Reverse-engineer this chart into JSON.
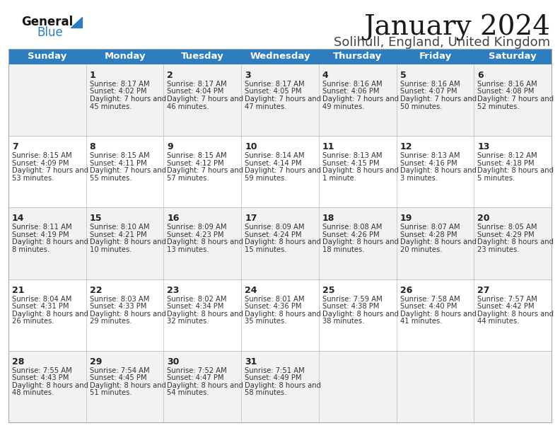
{
  "title": "January 2024",
  "subtitle": "Solihull, England, United Kingdom",
  "header_color": "#2E7DC0",
  "header_text_color": "#FFFFFF",
  "background_color": "#FFFFFF",
  "row_even_color": "#F2F2F2",
  "row_odd_color": "#FFFFFF",
  "border_color": "#AAAAAA",
  "line_color": "#BBBBBB",
  "days_of_week": [
    "Sunday",
    "Monday",
    "Tuesday",
    "Wednesday",
    "Thursday",
    "Friday",
    "Saturday"
  ],
  "title_fontsize": 28,
  "subtitle_fontsize": 13,
  "header_fontsize": 9.5,
  "day_num_fontsize": 9,
  "cell_fontsize": 7.2,
  "calendar_data": [
    [
      {
        "day": "",
        "sunrise": "",
        "sunset": "",
        "daylight": ""
      },
      {
        "day": "1",
        "sunrise": "8:17 AM",
        "sunset": "4:02 PM",
        "daylight": "7 hours and 45 minutes."
      },
      {
        "day": "2",
        "sunrise": "8:17 AM",
        "sunset": "4:04 PM",
        "daylight": "7 hours and 46 minutes."
      },
      {
        "day": "3",
        "sunrise": "8:17 AM",
        "sunset": "4:05 PM",
        "daylight": "7 hours and 47 minutes."
      },
      {
        "day": "4",
        "sunrise": "8:16 AM",
        "sunset": "4:06 PM",
        "daylight": "7 hours and 49 minutes."
      },
      {
        "day": "5",
        "sunrise": "8:16 AM",
        "sunset": "4:07 PM",
        "daylight": "7 hours and 50 minutes."
      },
      {
        "day": "6",
        "sunrise": "8:16 AM",
        "sunset": "4:08 PM",
        "daylight": "7 hours and 52 minutes."
      }
    ],
    [
      {
        "day": "7",
        "sunrise": "8:15 AM",
        "sunset": "4:09 PM",
        "daylight": "7 hours and 53 minutes."
      },
      {
        "day": "8",
        "sunrise": "8:15 AM",
        "sunset": "4:11 PM",
        "daylight": "7 hours and 55 minutes."
      },
      {
        "day": "9",
        "sunrise": "8:15 AM",
        "sunset": "4:12 PM",
        "daylight": "7 hours and 57 minutes."
      },
      {
        "day": "10",
        "sunrise": "8:14 AM",
        "sunset": "4:14 PM",
        "daylight": "7 hours and 59 minutes."
      },
      {
        "day": "11",
        "sunrise": "8:13 AM",
        "sunset": "4:15 PM",
        "daylight": "8 hours and 1 minute."
      },
      {
        "day": "12",
        "sunrise": "8:13 AM",
        "sunset": "4:16 PM",
        "daylight": "8 hours and 3 minutes."
      },
      {
        "day": "13",
        "sunrise": "8:12 AM",
        "sunset": "4:18 PM",
        "daylight": "8 hours and 5 minutes."
      }
    ],
    [
      {
        "day": "14",
        "sunrise": "8:11 AM",
        "sunset": "4:19 PM",
        "daylight": "8 hours and 8 minutes."
      },
      {
        "day": "15",
        "sunrise": "8:10 AM",
        "sunset": "4:21 PM",
        "daylight": "8 hours and 10 minutes."
      },
      {
        "day": "16",
        "sunrise": "8:09 AM",
        "sunset": "4:23 PM",
        "daylight": "8 hours and 13 minutes."
      },
      {
        "day": "17",
        "sunrise": "8:09 AM",
        "sunset": "4:24 PM",
        "daylight": "8 hours and 15 minutes."
      },
      {
        "day": "18",
        "sunrise": "8:08 AM",
        "sunset": "4:26 PM",
        "daylight": "8 hours and 18 minutes."
      },
      {
        "day": "19",
        "sunrise": "8:07 AM",
        "sunset": "4:28 PM",
        "daylight": "8 hours and 20 minutes."
      },
      {
        "day": "20",
        "sunrise": "8:05 AM",
        "sunset": "4:29 PM",
        "daylight": "8 hours and 23 minutes."
      }
    ],
    [
      {
        "day": "21",
        "sunrise": "8:04 AM",
        "sunset": "4:31 PM",
        "daylight": "8 hours and 26 minutes."
      },
      {
        "day": "22",
        "sunrise": "8:03 AM",
        "sunset": "4:33 PM",
        "daylight": "8 hours and 29 minutes."
      },
      {
        "day": "23",
        "sunrise": "8:02 AM",
        "sunset": "4:34 PM",
        "daylight": "8 hours and 32 minutes."
      },
      {
        "day": "24",
        "sunrise": "8:01 AM",
        "sunset": "4:36 PM",
        "daylight": "8 hours and 35 minutes."
      },
      {
        "day": "25",
        "sunrise": "7:59 AM",
        "sunset": "4:38 PM",
        "daylight": "8 hours and 38 minutes."
      },
      {
        "day": "26",
        "sunrise": "7:58 AM",
        "sunset": "4:40 PM",
        "daylight": "8 hours and 41 minutes."
      },
      {
        "day": "27",
        "sunrise": "7:57 AM",
        "sunset": "4:42 PM",
        "daylight": "8 hours and 44 minutes."
      }
    ],
    [
      {
        "day": "28",
        "sunrise": "7:55 AM",
        "sunset": "4:43 PM",
        "daylight": "8 hours and 48 minutes."
      },
      {
        "day": "29",
        "sunrise": "7:54 AM",
        "sunset": "4:45 PM",
        "daylight": "8 hours and 51 minutes."
      },
      {
        "day": "30",
        "sunrise": "7:52 AM",
        "sunset": "4:47 PM",
        "daylight": "8 hours and 54 minutes."
      },
      {
        "day": "31",
        "sunrise": "7:51 AM",
        "sunset": "4:49 PM",
        "daylight": "8 hours and 58 minutes."
      },
      {
        "day": "",
        "sunrise": "",
        "sunset": "",
        "daylight": ""
      },
      {
        "day": "",
        "sunrise": "",
        "sunset": "",
        "daylight": ""
      },
      {
        "day": "",
        "sunrise": "",
        "sunset": "",
        "daylight": ""
      }
    ]
  ],
  "logo_general_color": "#111111",
  "logo_blue_color": "#2E7DC0",
  "logo_triangle_color": "#2E7DC0"
}
